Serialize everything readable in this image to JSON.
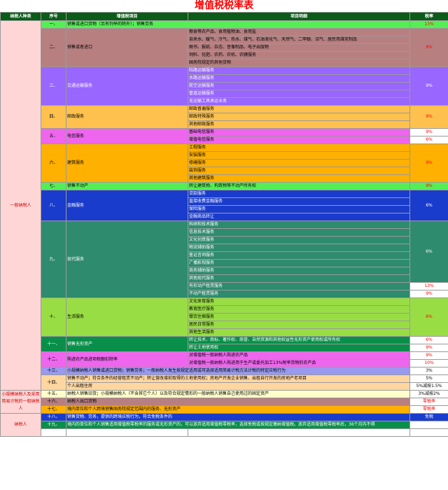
{
  "title": "增值税税率表",
  "headers": [
    "纳税人种类",
    "序号",
    "增值税项目",
    "项目明细",
    "税率"
  ],
  "taxpayer_groups": [
    {
      "label": "一般纳税人",
      "rows": 48,
      "color": "#ffd6d6"
    },
    {
      "label": "小规模纳税人及采用简易计税的一般纳税人",
      "rows": 3,
      "color": "#ffd6d6"
    },
    {
      "label": "纳税人",
      "rows": 4,
      "color": "#ffd6d6"
    },
    {
      "label": "",
      "rows": 2,
      "color": "#ffffff"
    }
  ],
  "sections": [
    {
      "seq": "一、",
      "item": "销售或进口货物（另有列举的除外）；销售劳务",
      "color": "#55ee55",
      "span_item": true,
      "details": [
        {
          "text": "",
          "rate": "13%"
        }
      ]
    },
    {
      "seq": "二、",
      "item": "销售或者进口",
      "color": "#b87f80",
      "details": [
        {
          "text": "粮食等农产品、食用植物油、食用盐",
          "rate": ""
        },
        {
          "text": "自来水、暖气、冷气、热水、煤气、石油液化气、天然气、二甲醚、沼气、居民用煤炭制品",
          "rate": "9%"
        },
        {
          "text": "图书、报纸、杂志、音像制品、电子出版物",
          "rate": ""
        },
        {
          "text": "饲料、化肥、农药、农机、农膜服务",
          "rate": ""
        },
        {
          "text": "国务院规定的其他货物",
          "rate": ""
        }
      ]
    },
    {
      "seq": "三、",
      "item": "交通运输服务",
      "color": "#9966ff",
      "details": [
        {
          "text": "陆路运输服务",
          "rate": ""
        },
        {
          "text": "水路运输服务",
          "rate": ""
        },
        {
          "text": "航空运输服务",
          "rate": "9%"
        },
        {
          "text": "管道运输服务",
          "rate": ""
        },
        {
          "text": "无运输工具承运业务",
          "rate": ""
        }
      ]
    },
    {
      "seq": "四、",
      "item": "邮政服务",
      "color": "#ffc14d",
      "details": [
        {
          "text": "邮政普遍服务",
          "rate": ""
        },
        {
          "text": "邮政特殊服务",
          "rate": "9%"
        },
        {
          "text": "其他邮政服务",
          "rate": ""
        }
      ]
    },
    {
      "seq": "五、",
      "item": "电信服务",
      "color": "#ee66ee",
      "details": [
        {
          "text": "基础电信服务",
          "rate": "9%"
        },
        {
          "text": "增值电信服务",
          "rate": "6%"
        }
      ]
    },
    {
      "seq": "六、",
      "item": "建筑服务",
      "color": "#ffb000",
      "details": [
        {
          "text": "工程服务",
          "rate": ""
        },
        {
          "text": "安装服务",
          "rate": ""
        },
        {
          "text": "修缮服务",
          "rate": "9%"
        },
        {
          "text": "装饰服务",
          "rate": ""
        },
        {
          "text": "其他建筑服务",
          "rate": ""
        }
      ]
    },
    {
      "seq": "七、",
      "item": "销售不动产",
      "color": "#55ee55",
      "details": [
        {
          "text": "转让建筑物、构筑物等不动产所有权",
          "rate": "9%"
        }
      ]
    },
    {
      "seq": "八、",
      "item": "金融服务",
      "color": "#1a3ccc",
      "details": [
        {
          "text": "贷款服务",
          "rate": ""
        },
        {
          "text": "直接收费金融服务",
          "rate": "6%"
        },
        {
          "text": "保险服务",
          "rate": ""
        },
        {
          "text": "金融商品转让",
          "rate": ""
        }
      ]
    },
    {
      "seq": "九、",
      "item": "现代服务",
      "color": "#2e8b6e",
      "details": [
        {
          "text": "科研和技术服务",
          "rate": ""
        },
        {
          "text": "信息技术服务",
          "rate": ""
        },
        {
          "text": "文化创意服务",
          "rate": ""
        },
        {
          "text": "物流辅助服务",
          "rate": ""
        },
        {
          "text": "鉴证咨询服务",
          "rate": "6%"
        },
        {
          "text": "广播影视服务",
          "rate": ""
        },
        {
          "text": "商务辅助服务",
          "rate": ""
        },
        {
          "text": "其他现代服务",
          "rate": ""
        },
        {
          "text": "有形动产租赁服务",
          "rate": "13%"
        },
        {
          "text": "不动产租赁服务",
          "rate": "9%"
        }
      ]
    },
    {
      "seq": "十、",
      "item": "生活服务",
      "color": "#99dd44",
      "details": [
        {
          "text": "文化体育服务",
          "rate": ""
        },
        {
          "text": "教育医疗服务",
          "rate": ""
        },
        {
          "text": "餐饮住宿服务",
          "rate": "6%"
        },
        {
          "text": "居民日常服务",
          "rate": ""
        },
        {
          "text": "其他生活服务",
          "rate": ""
        }
      ]
    },
    {
      "seq": "十一、",
      "item": "销售无形资产",
      "color": "#0a8f4a",
      "details": [
        {
          "text": "转让技术、商标、著作权、商誉、自然资源和其他权益性无形资产使用权或所有权",
          "rate": "6%"
        },
        {
          "text": "转让土地使用权",
          "rate": "9%"
        }
      ]
    },
    {
      "seq": "十二、",
      "item": "购进农产品进项税额扣除率",
      "color": "#ee66ee",
      "details": [
        {
          "text": "对增值税一般纳税人购进农产品",
          "rate": "9%"
        },
        {
          "text": "对增值税一般纳税人购进用于生产或委托加工13%税率货物的农产品",
          "rate": "10%"
        }
      ]
    }
  ],
  "small_scale": [
    {
      "seq": "十三、",
      "text": "小规模纳税人销售或进口货物；销售劳务；一般纳税人发生按规定适用或可选择适用简易计税方法计税的特定应税行为",
      "rate": "3%",
      "color": "#9999ee"
    },
    {
      "seq": "十四、",
      "text": "销售不动产；符合条件的经营租赁不动产；转让营改增前取得的土地使用权；房地产开发企业销售、出租自行开发的房地产老项目",
      "text2": "个人出租住房",
      "rate": "5%",
      "rate2": "5%减按1.5%",
      "color": "#ffd6a0"
    },
    {
      "seq": "十五、",
      "text": "纳税人销售旧货；小规模纳税人（不含其它个人）以及符合规定情形的一般纳税人销售自己使用过的固定资产",
      "rate": "3%减按2%",
      "color": "#ffffcc"
    }
  ],
  "zero_rate": [
    {
      "seq": "十六、",
      "text": "纳税人出口货物",
      "rate": "零税率",
      "color": "#b87f80"
    },
    {
      "seq": "十七、",
      "text": "境内单位和个人跨境销售国务院规定范围内的服务、无形资产",
      "rate": "零税率",
      "color": "#ffb000"
    },
    {
      "seq": "十八、",
      "text": "销售货物、劳务，提供的跨境应税行为，符合免税条件的",
      "rate": "免税",
      "color": "#1a3ccc"
    },
    {
      "seq": "十九、",
      "text": "境内的单位和个人销售适用增值税零税率的服务或无形资产的，可以放弃适用增值税零税率，选择免税或按规定缴纳增值税。放弃适用增值税零税率后，36个月内不得",
      "rate": "",
      "color": "#0a8f4a"
    }
  ]
}
